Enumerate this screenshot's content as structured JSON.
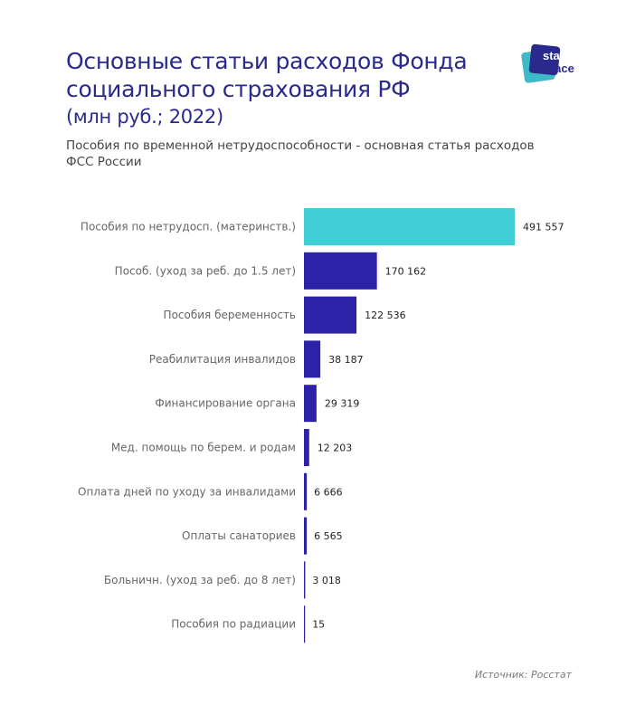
{
  "header": {
    "title_line1": "Основные статьи расходов Фонда",
    "title_line2": "социального страхования РФ",
    "title_units": "(млн руб.; 2022)",
    "subtitle": "Пособия по временной нетрудоспособности - основная статья расходов ФСС России",
    "logo_text": [
      "stat",
      "space"
    ]
  },
  "source": "Источник: Росстат",
  "colors": {
    "highlight": "#3fcdd6",
    "bar": "#2c22a8",
    "title": "#2a2a8c"
  },
  "chart_data": {
    "type": "bar",
    "orientation": "horizontal",
    "categories": [
      "Пособия по нетрудосп. (материнств.)",
      "Пособ. (уход за реб. до 1.5 лет)",
      "Пособия беременность",
      "Реабилитация инвалидов",
      "Финансирование органа",
      "Мед. помощь по берем. и родам",
      "Оплата дней по уходу за инвалидами",
      "Оплаты санаториев",
      "Больничн. (уход за реб. до 8 лет)",
      "Пособия по радиации"
    ],
    "values": [
      491557,
      170162,
      122536,
      38187,
      29319,
      12203,
      6666,
      6565,
      3018,
      15
    ],
    "value_labels": [
      "491 557",
      "170 162",
      "122 536",
      "38 187",
      "29 319",
      "12 203",
      "6 666",
      "6 565",
      "3 018",
      "15"
    ],
    "highlighted_index": 0,
    "grid": false,
    "axis_visible": false
  }
}
